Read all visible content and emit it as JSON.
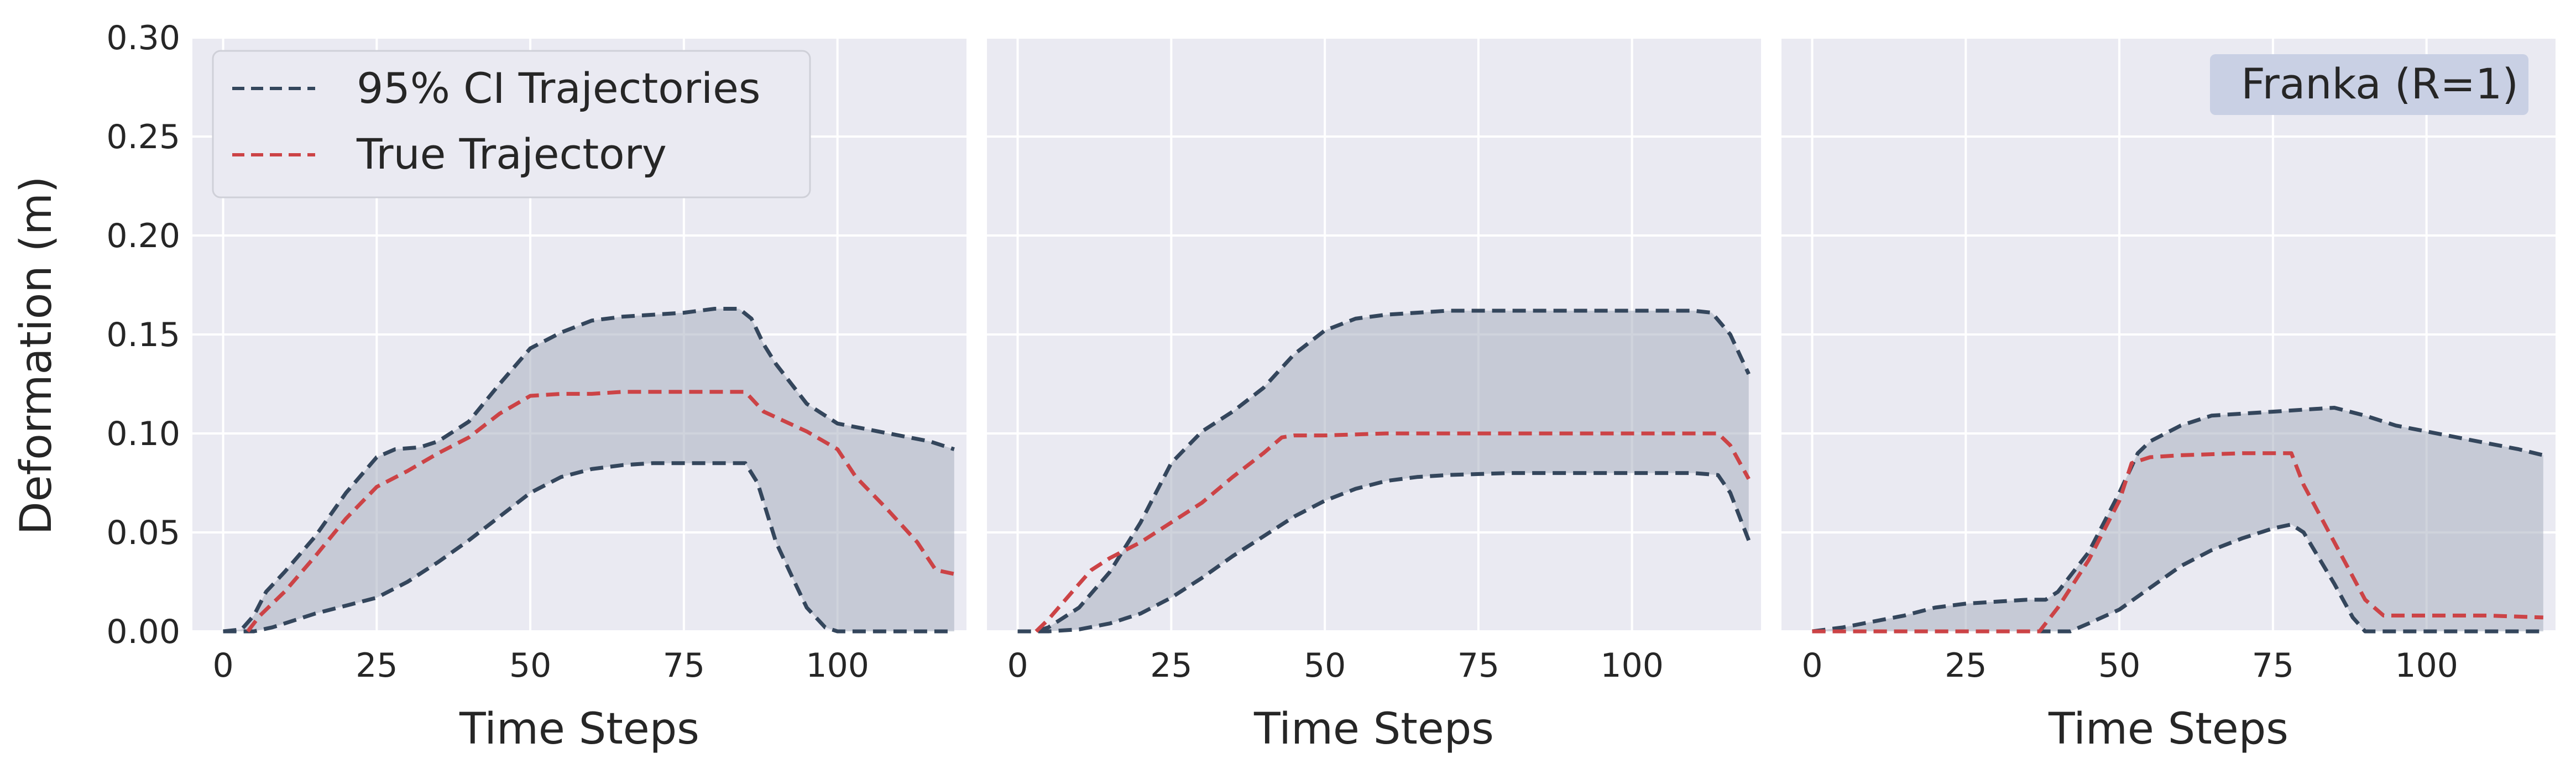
{
  "figure": {
    "ylabel": "Deformation (m)",
    "xlabel": "Time Steps"
  },
  "legend": {
    "ci_label": "95% CI Trajectories",
    "true_label": "True Trajectory"
  },
  "colors": {
    "panel_bg": "#eaeaf2",
    "grid": "#ffffff",
    "ci_line": "#34465c",
    "ci_fill": "#a8afbf",
    "true_line": "#cc4346",
    "badge_bg": "#c9d0e4"
  },
  "chart_data": [
    {
      "type": "line",
      "xlabel": "Time Steps",
      "ylabel": "Deformation (m)",
      "xlim": [
        -5,
        121
      ],
      "ylim": [
        0,
        0.3
      ],
      "xticks": [
        "0",
        "25",
        "50",
        "75",
        "100"
      ],
      "yticks": [
        "0.00",
        "0.05",
        "0.10",
        "0.15",
        "0.20",
        "0.25",
        "0.30"
      ],
      "grid": true,
      "legend": "upper-left",
      "series": [
        {
          "name": "95% CI Trajectories",
          "role": "upper",
          "x": [
            0,
            3,
            5,
            7,
            10,
            15,
            20,
            25,
            28,
            32,
            35,
            40,
            45,
            50,
            55,
            60,
            65,
            70,
            75,
            80,
            84,
            86,
            88,
            90,
            95,
            100,
            105,
            110,
            115,
            119
          ],
          "y": [
            0.0,
            0.001,
            0.008,
            0.02,
            0.03,
            0.048,
            0.07,
            0.088,
            0.092,
            0.093,
            0.096,
            0.106,
            0.125,
            0.143,
            0.151,
            0.157,
            0.159,
            0.16,
            0.161,
            0.163,
            0.163,
            0.158,
            0.145,
            0.135,
            0.115,
            0.105,
            0.102,
            0.099,
            0.096,
            0.092
          ]
        },
        {
          "name": "",
          "role": "lower",
          "x": [
            0,
            3,
            5,
            8,
            10,
            15,
            20,
            25,
            30,
            35,
            40,
            45,
            50,
            55,
            60,
            65,
            70,
            75,
            80,
            85,
            87,
            90,
            93,
            95,
            98,
            100,
            105,
            110,
            115,
            119
          ],
          "y": [
            0.0,
            0.0,
            0.0,
            0.002,
            0.004,
            0.009,
            0.013,
            0.017,
            0.025,
            0.035,
            0.046,
            0.058,
            0.07,
            0.078,
            0.082,
            0.084,
            0.085,
            0.085,
            0.085,
            0.085,
            0.075,
            0.045,
            0.025,
            0.012,
            0.002,
            0.0,
            0.0,
            0.0,
            0.0,
            0.0
          ]
        },
        {
          "name": "True Trajectory",
          "role": "true",
          "x": [
            4,
            6,
            10,
            15,
            20,
            25,
            30,
            35,
            40,
            45,
            50,
            55,
            60,
            65,
            70,
            75,
            80,
            85,
            88,
            95,
            100,
            103,
            108,
            113,
            116,
            119
          ],
          "y": [
            0.0,
            0.008,
            0.02,
            0.038,
            0.057,
            0.073,
            0.081,
            0.09,
            0.098,
            0.11,
            0.119,
            0.12,
            0.12,
            0.121,
            0.121,
            0.121,
            0.121,
            0.121,
            0.111,
            0.101,
            0.092,
            0.078,
            0.062,
            0.045,
            0.031,
            0.029
          ]
        }
      ]
    },
    {
      "type": "line",
      "xlabel": "Time Steps",
      "ylabel": "",
      "xlim": [
        -5,
        121
      ],
      "ylim": [
        0,
        0.3
      ],
      "xticks": [
        "0",
        "25",
        "50",
        "75",
        "100"
      ],
      "yticks": [],
      "grid": true,
      "series": [
        {
          "name": "",
          "role": "upper",
          "x": [
            0,
            3,
            5,
            10,
            15,
            20,
            25,
            30,
            35,
            40,
            45,
            50,
            55,
            60,
            70,
            80,
            90,
            100,
            110,
            113,
            116,
            119
          ],
          "y": [
            0.0,
            0.0,
            0.002,
            0.012,
            0.03,
            0.055,
            0.085,
            0.101,
            0.111,
            0.123,
            0.14,
            0.152,
            0.158,
            0.16,
            0.162,
            0.162,
            0.162,
            0.162,
            0.162,
            0.161,
            0.15,
            0.13
          ]
        },
        {
          "name": "",
          "role": "lower",
          "x": [
            0,
            5,
            10,
            15,
            20,
            25,
            30,
            35,
            40,
            45,
            50,
            55,
            60,
            65,
            70,
            80,
            90,
            100,
            110,
            114,
            116,
            119
          ],
          "y": [
            0.0,
            0.0,
            0.001,
            0.004,
            0.009,
            0.017,
            0.027,
            0.038,
            0.048,
            0.058,
            0.066,
            0.072,
            0.076,
            0.078,
            0.079,
            0.08,
            0.08,
            0.08,
            0.08,
            0.079,
            0.07,
            0.046
          ]
        },
        {
          "name": "",
          "role": "true",
          "x": [
            3,
            5,
            10,
            12,
            15,
            20,
            25,
            30,
            35,
            40,
            43,
            45,
            50,
            60,
            70,
            80,
            90,
            100,
            110,
            114,
            116,
            119
          ],
          "y": [
            0.0,
            0.006,
            0.024,
            0.031,
            0.037,
            0.045,
            0.055,
            0.065,
            0.078,
            0.09,
            0.098,
            0.099,
            0.099,
            0.1,
            0.1,
            0.1,
            0.1,
            0.1,
            0.1,
            0.1,
            0.094,
            0.077
          ]
        }
      ]
    },
    {
      "type": "line",
      "xlabel": "Time Steps",
      "ylabel": "",
      "xlim": [
        -5,
        121
      ],
      "ylim": [
        0,
        0.3
      ],
      "xticks": [
        "0",
        "25",
        "50",
        "75",
        "100"
      ],
      "yticks": [],
      "grid": true,
      "annotation": "Franka (R=1)",
      "annotation_position": "top-right",
      "series": [
        {
          "name": "",
          "role": "upper",
          "x": [
            0,
            5,
            10,
            15,
            20,
            25,
            30,
            35,
            38,
            40,
            45,
            50,
            53,
            55,
            60,
            65,
            70,
            75,
            80,
            85,
            90,
            95,
            100,
            105,
            110,
            115,
            119
          ],
          "y": [
            0.0,
            0.002,
            0.005,
            0.008,
            0.012,
            0.014,
            0.015,
            0.016,
            0.016,
            0.02,
            0.04,
            0.07,
            0.09,
            0.096,
            0.104,
            0.109,
            0.11,
            0.111,
            0.112,
            0.113,
            0.109,
            0.104,
            0.101,
            0.098,
            0.095,
            0.092,
            0.089
          ]
        },
        {
          "name": "",
          "role": "lower",
          "x": [
            0,
            5,
            10,
            20,
            30,
            40,
            42,
            45,
            50,
            55,
            60,
            65,
            70,
            75,
            78,
            80,
            85,
            88,
            90,
            95,
            100,
            110,
            119
          ],
          "y": [
            0.0,
            0.0,
            0.0,
            0.0,
            0.0,
            0.0,
            0.0,
            0.004,
            0.011,
            0.022,
            0.033,
            0.041,
            0.047,
            0.052,
            0.054,
            0.05,
            0.024,
            0.007,
            0.0,
            0.0,
            0.0,
            0.0,
            0.0
          ]
        },
        {
          "name": "",
          "role": "true",
          "x": [
            0,
            10,
            20,
            30,
            37,
            40,
            45,
            50,
            52,
            55,
            60,
            70,
            78,
            80,
            85,
            90,
            93,
            100,
            110,
            119
          ],
          "y": [
            0.0,
            0.0,
            0.0,
            0.0,
            0.0,
            0.012,
            0.036,
            0.066,
            0.085,
            0.088,
            0.089,
            0.09,
            0.09,
            0.074,
            0.045,
            0.016,
            0.008,
            0.008,
            0.008,
            0.007
          ]
        }
      ]
    }
  ]
}
